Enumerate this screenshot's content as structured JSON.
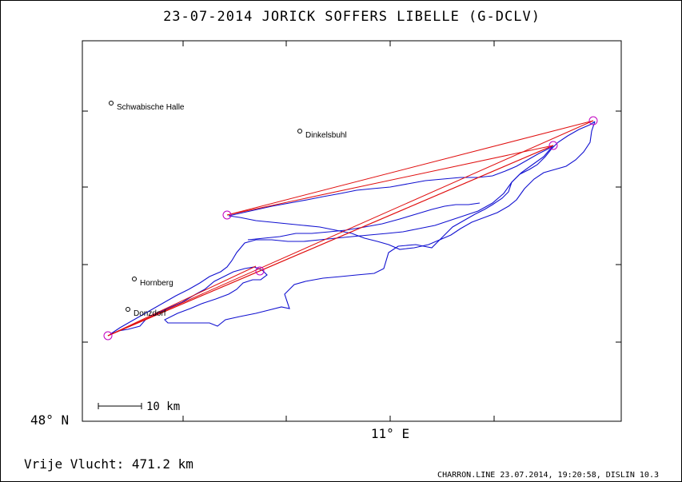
{
  "header": {
    "title": "23-07-2014   JORICK SOFFERS   LIBELLE (G-DCLV)"
  },
  "chart_data": {
    "type": "map-track",
    "axes": {
      "lat_label": "48° N",
      "lon_label": "11° E"
    },
    "scale_bar": {
      "label": "10 km"
    },
    "places": [
      {
        "name": "Schwabische Halle",
        "px": [
          139,
          129
        ]
      },
      {
        "name": "Dinkelsbuhl",
        "px": [
          375,
          164
        ]
      },
      {
        "name": "Hornberg",
        "px": [
          168,
          349
        ]
      },
      {
        "name": "Donzdorf",
        "px": [
          160,
          387
        ]
      }
    ],
    "turnpoints": [
      {
        "px": [
          135,
          420
        ]
      },
      {
        "px": [
          284,
          269
        ]
      },
      {
        "px": [
          325,
          339
        ]
      },
      {
        "px": [
          692,
          182
        ]
      },
      {
        "px": [
          742,
          151
        ]
      }
    ],
    "task_legs": [
      [
        [
          135,
          420
        ],
        [
          742,
          151
        ]
      ],
      [
        [
          135,
          420
        ],
        [
          692,
          182
        ]
      ],
      [
        [
          135,
          420
        ],
        [
          325,
          339
        ]
      ],
      [
        [
          284,
          269
        ],
        [
          742,
          151
        ]
      ],
      [
        [
          284,
          269
        ],
        [
          692,
          182
        ]
      ],
      [
        [
          325,
          339
        ],
        [
          692,
          182
        ]
      ],
      [
        [
          135,
          420
        ],
        [
          320,
          333
        ]
      ]
    ],
    "colors": {
      "track": "#1010d0",
      "task": "#e01010",
      "turnpoint": "#c000c0"
    }
  },
  "footer": {
    "distance": "Vrije Vlucht:  471.2 km",
    "credits": "CHARRON.LINE 23.07.2014, 19:20:58, DISLIN 10.3"
  }
}
